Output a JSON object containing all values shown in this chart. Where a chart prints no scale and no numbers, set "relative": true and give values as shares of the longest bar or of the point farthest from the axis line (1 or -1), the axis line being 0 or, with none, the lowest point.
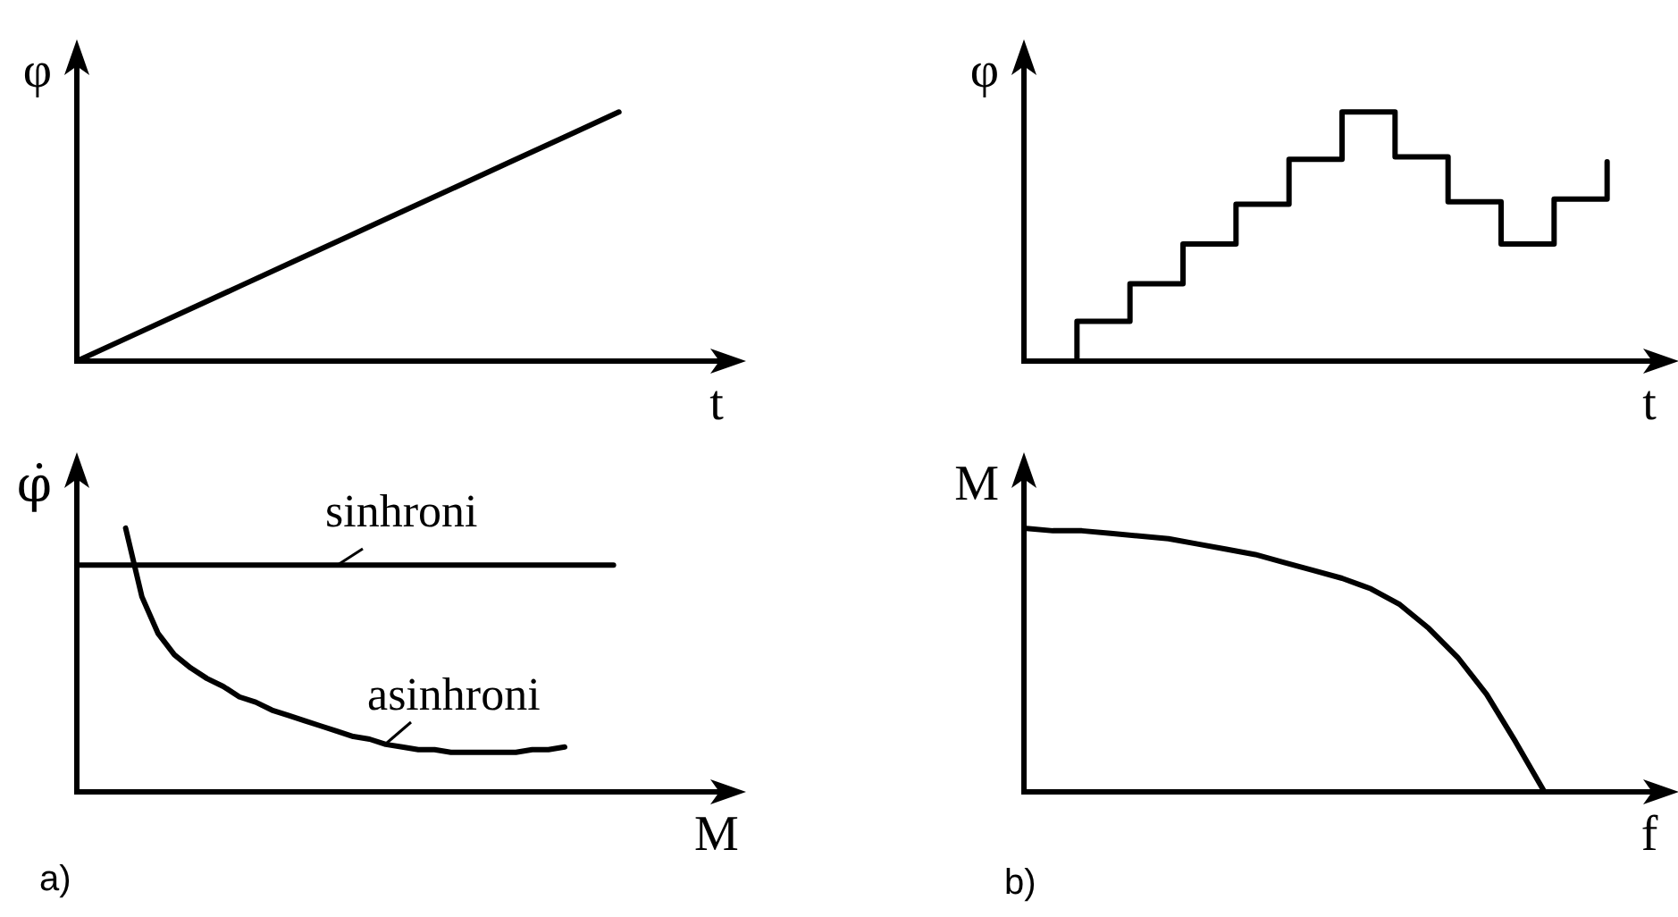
{
  "chart_data": [
    {
      "type": "line",
      "xlabel": "t",
      "ylabel": "φ",
      "relative": true,
      "color": "#000000",
      "categories": [
        null,
        null,
        null,
        null,
        null,
        null,
        null,
        null,
        null,
        null,
        null,
        null,
        null
      ],
      "values": [
        0,
        0.1,
        0.2,
        0.3,
        0.4,
        0.5,
        0.6,
        0.7,
        0.8,
        0.9,
        1,
        null,
        null
      ]
    },
    {
      "type": "step",
      "xlabel": "t",
      "ylabel": "φ",
      "relative": true,
      "color": "#000000",
      "categories": [
        null,
        null,
        null,
        null,
        null,
        null,
        null,
        null,
        null,
        null,
        null,
        null,
        null
      ],
      "values": [
        0,
        0.16,
        0.31,
        0.47,
        0.63,
        0.81,
        1,
        0.82,
        0.64,
        0.47,
        0.65,
        0.8,
        null
      ]
    },
    {
      "type": "line",
      "xlabel": "M",
      "ylabel": "φ̇",
      "relative": true,
      "annotations": [
        "a)"
      ],
      "categories": [
        null,
        null,
        null,
        null,
        null,
        null,
        null,
        null,
        null,
        null,
        null,
        null,
        null,
        null,
        null,
        null,
        null,
        null,
        null,
        null,
        null,
        null,
        null,
        null,
        null,
        null,
        null,
        null,
        null,
        null,
        null,
        null,
        null,
        null,
        null,
        null,
        null,
        null,
        null,
        null,
        null
      ],
      "series": [
        {
          "name": "sinhroni",
          "color": "#000000",
          "values": [
            0.86,
            0.86,
            0.86,
            0.86,
            0.86,
            0.86,
            0.86,
            0.86,
            0.86,
            0.86,
            0.86,
            0.86,
            0.86,
            0.86,
            0.86,
            0.86,
            0.86,
            0.86,
            0.86,
            0.86,
            0.86,
            0.86,
            0.86,
            0.86,
            0.86,
            0.86,
            0.86,
            0.86,
            0.86,
            0.86,
            0.86,
            0.86,
            0.86,
            0.86,
            null,
            null,
            null,
            null,
            null,
            null,
            null
          ]
        },
        {
          "name": "asinhroni",
          "color": "#000000",
          "values": [
            null,
            null,
            null,
            1,
            0.74,
            0.6,
            0.52,
            0.47,
            0.43,
            0.4,
            0.36,
            0.34,
            0.31,
            0.29,
            0.27,
            0.25,
            0.23,
            0.21,
            0.2,
            0.18,
            0.17,
            0.16,
            0.16,
            0.15,
            0.15,
            0.15,
            0.15,
            0.15,
            0.16,
            0.16,
            0.17,
            null,
            null,
            null,
            null,
            null,
            null,
            null,
            null,
            null,
            null
          ]
        }
      ]
    },
    {
      "type": "line",
      "xlabel": "f",
      "ylabel": "M",
      "relative": true,
      "annotations": [
        "b)"
      ],
      "color": "#000000",
      "categories": [
        null,
        null,
        null,
        null,
        null,
        null,
        null,
        null,
        null,
        null,
        null,
        null,
        null,
        null,
        null,
        null,
        null,
        null,
        null,
        null,
        null,
        null,
        null
      ],
      "values": [
        1,
        0.99,
        0.99,
        0.98,
        0.97,
        0.96,
        0.94,
        0.92,
        0.9,
        0.87,
        0.84,
        0.81,
        0.77,
        0.71,
        0.62,
        0.51,
        0.37,
        0.19,
        0,
        null,
        null,
        null,
        null
      ]
    }
  ]
}
